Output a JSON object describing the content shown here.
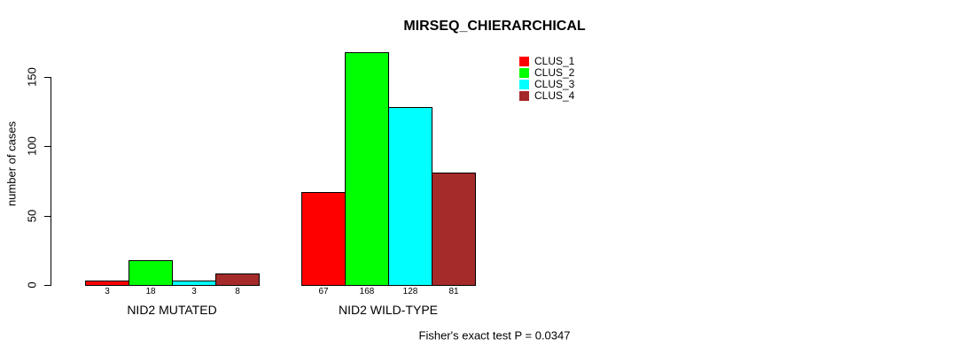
{
  "chart_data": {
    "type": "bar",
    "title": "MIRSEQ_CHIERARCHICAL",
    "ylabel": "number of cases",
    "xlabel": "",
    "categories": [
      "NID2 MUTATED",
      "NID2 WILD-TYPE"
    ],
    "series": [
      {
        "name": "CLUS_1",
        "color": "#FF0000",
        "values": [
          3,
          67
        ]
      },
      {
        "name": "CLUS_2",
        "color": "#00FF00",
        "values": [
          18,
          168
        ]
      },
      {
        "name": "CLUS_3",
        "color": "#00FFFF",
        "values": [
          3,
          128
        ]
      },
      {
        "name": "CLUS_4",
        "color": "#A52A2A",
        "values": [
          8,
          81
        ]
      }
    ],
    "yticks": [
      0,
      50,
      100,
      150
    ],
    "ylim": [
      0,
      168
    ],
    "grid": false,
    "legend_position": "top-right",
    "bar_border_color": "#000000",
    "footnote": "Fisher's exact test P = 0.0347"
  }
}
